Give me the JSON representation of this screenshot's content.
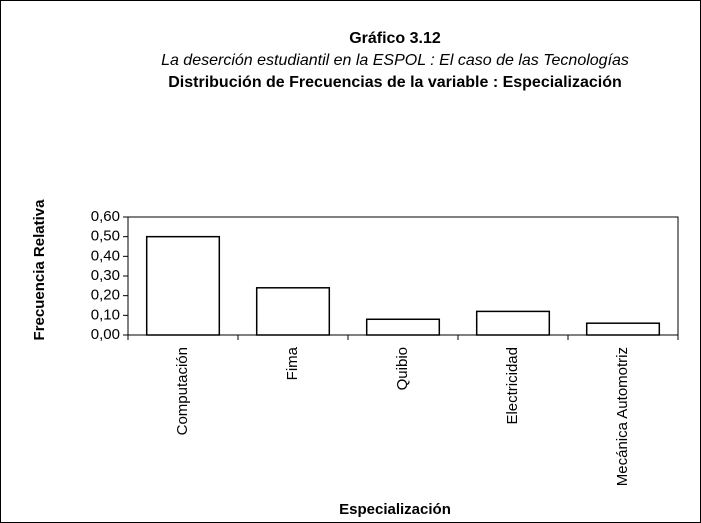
{
  "chart_data": {
    "type": "bar",
    "title": "Gráfico 3.12",
    "subtitle": "La deserción estudiantil en la ESPOL : El caso de las Tecnologías",
    "title2": "Distribución de Frecuencias de la variable : Especialización",
    "x_label": "Especialización",
    "y_label": "Frecuencia Relativa",
    "categories": [
      "Computación",
      "Fima",
      "Quibio",
      "Electricidad",
      "Mecánica Automotriz"
    ],
    "values": [
      0.5,
      0.24,
      0.08,
      0.12,
      0.06
    ],
    "color": "#ffffff",
    "ylim": [
      0,
      0.6
    ],
    "yticks": [
      {
        "value": 0,
        "label": "0,00"
      },
      {
        "value": 0.1,
        "label": "0,10"
      },
      {
        "value": 0.2,
        "label": "0,20"
      },
      {
        "value": 0.3,
        "label": "0,30"
      },
      {
        "value": 0.4,
        "label": "0,40"
      },
      {
        "value": 0.5,
        "label": "0,50"
      },
      {
        "value": 0.6,
        "label": "0,60"
      }
    ],
    "grid": false
  }
}
